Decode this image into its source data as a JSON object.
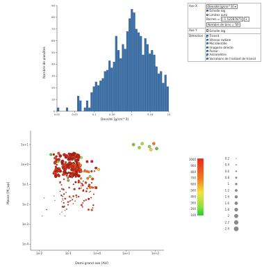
{
  "histogram": {
    "ylabel": "Nombre de planètes",
    "xlabel": "Densité [g/cm^3]",
    "ticks_x": [
      {
        "label": "0.01",
        "v": 0.01
      },
      {
        "label": "0.1",
        "v": 0.1
      },
      {
        "label": "1",
        "v": 1
      },
      {
        "label": "10",
        "v": 10
      }
    ],
    "ticks_x_minor": [
      {
        "label": "0.03",
        "v": 0.03
      },
      {
        "label": "0.30",
        "v": 0.3
      },
      {
        "label": "3.16",
        "v": 3.16
      }
    ],
    "ticks_y": [
      0,
      10,
      20,
      30,
      40,
      50,
      60,
      70,
      80,
      90
    ]
  },
  "controls": {
    "axe_x_label": "Axe X",
    "axe_x_select": "Densité [g/cm^3] ▾",
    "log_label": "Échelle log",
    "limits_label": "Limites auto",
    "bornes_label": "Bornes =",
    "bornes_min": "[-1.52287875",
    "bornes_max": "1.",
    "bins_label": "Nombre de bins = 50",
    "axe_y_label": "Axe Y",
    "axe_y_log": "Échelle log",
    "detection_label": "Détection",
    "methods": [
      "Transit",
      "Vitesse radiale",
      "Microlentille",
      "Imagerie directe",
      "Pulsar",
      "Astrométrie",
      "Variations de l'instant de transit"
    ]
  },
  "scatter": {
    "ylabel": "Masse [M_Jup]",
    "xlabel": "Demi-grand axe [AU]",
    "xticks": [
      "1e-2",
      "1e-1",
      "1e+0",
      "1e+1",
      "1e+2"
    ],
    "yticks": [
      "1e+1",
      "1e+0",
      "1e-1",
      "1e-2",
      "1e-3",
      "1e-4"
    ]
  },
  "colorbar": {
    "labels": [
      "1000",
      "900",
      "800",
      "700",
      "600",
      "500",
      "400",
      "300",
      "200",
      "100"
    ]
  },
  "sizelegend": {
    "labels": [
      "0.2",
      "0.4",
      "0.6",
      "0.8",
      "1",
      "1.2",
      "1.4",
      "1.6",
      "1.8",
      "2",
      "2.2",
      "2.4"
    ]
  },
  "chart_data": [
    {
      "type": "bar",
      "title": "",
      "xlabel": "Densité [g/cm^3]",
      "ylabel": "Nombre de planètes",
      "xscale": "log",
      "xlim": [
        0.01,
        10
      ],
      "ylim": [
        0,
        90
      ],
      "bins": 50,
      "values": [
        3,
        0,
        0,
        0,
        3,
        0,
        0,
        0,
        0,
        13,
        9,
        0,
        3,
        9,
        3,
        16,
        21,
        25,
        22,
        26,
        28,
        34,
        35,
        43,
        37,
        42,
        64,
        52,
        45,
        57,
        53,
        68,
        79,
        87,
        84,
        70,
        67,
        64,
        48,
        62,
        57,
        49,
        52,
        48,
        38,
        32,
        34,
        24,
        31,
        21
      ]
    },
    {
      "type": "scatter",
      "title": "",
      "xlabel": "Demi-grand axe [AU]",
      "ylabel": "Masse [M_Jup]",
      "xscale": "log",
      "yscale": "log",
      "xlim": [
        0.005,
        200
      ],
      "ylim": [
        5e-05,
        50
      ]
    }
  ]
}
